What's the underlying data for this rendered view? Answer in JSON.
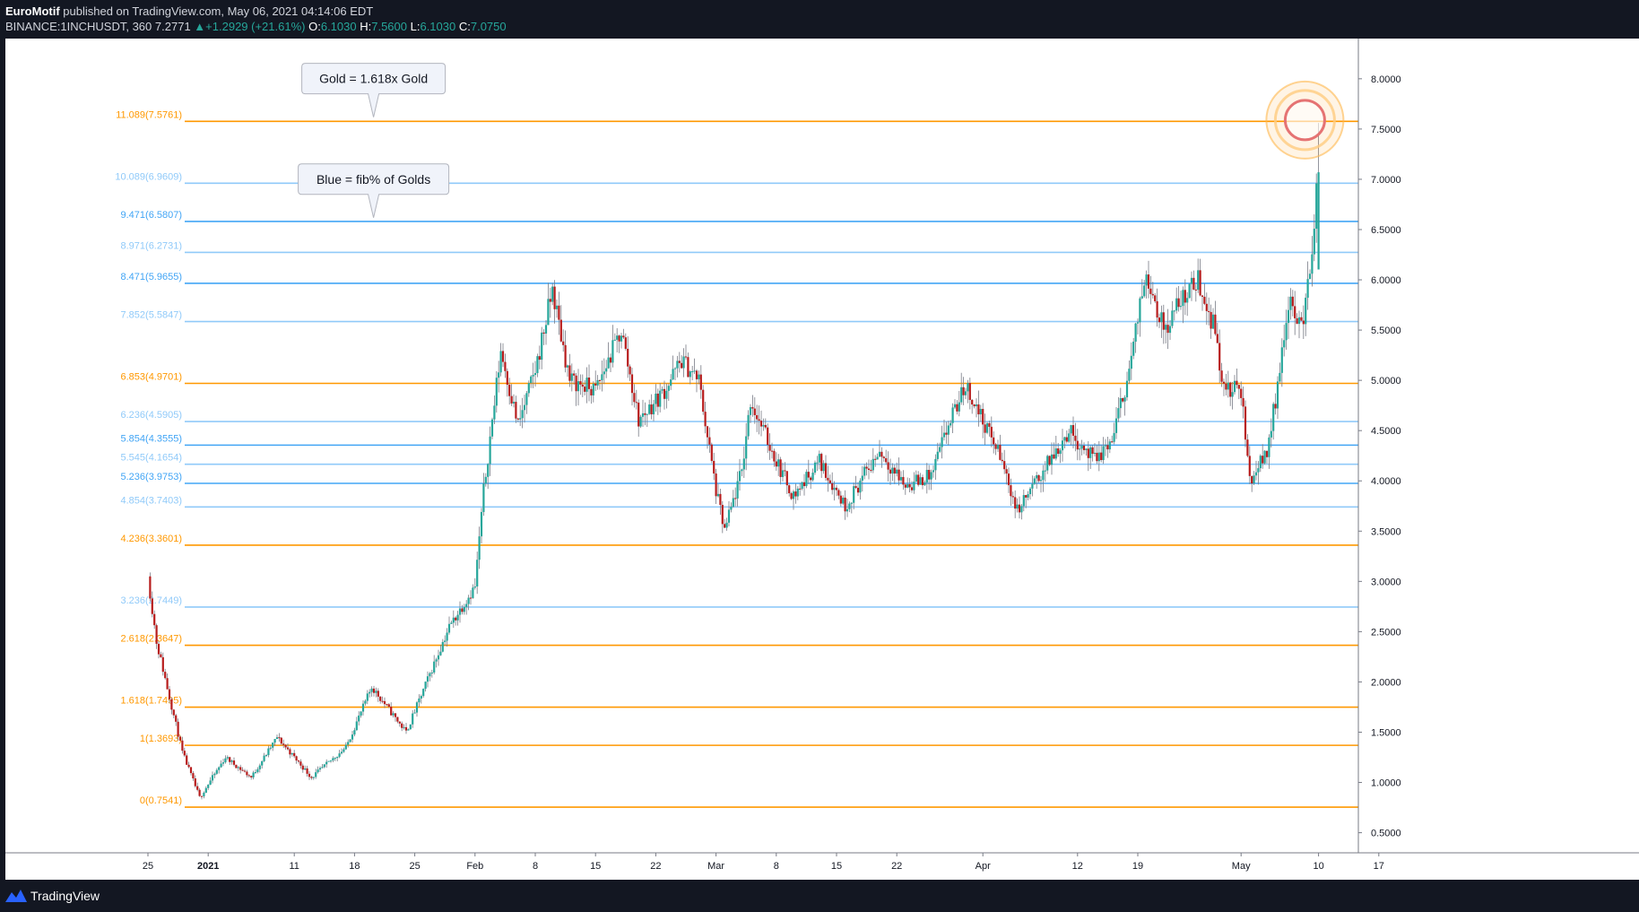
{
  "header": {
    "author": "EuroMotif",
    "published": "published on TradingView.com, May 06, 2021 04:14:06 EDT",
    "symbol": "BINANCE:1INCHUSDT, 360",
    "last": "7.2771",
    "change": "+1.2929 (+21.61%)",
    "ohlc": [
      {
        "label": "O:",
        "value": "6.1030"
      },
      {
        "label": "H:",
        "value": "7.5600"
      },
      {
        "label": "L:",
        "value": "6.1030"
      },
      {
        "label": "C:",
        "value": "7.0750"
      }
    ]
  },
  "footer": {
    "brand": "TradingView"
  },
  "colors": {
    "gold": "#ff9800",
    "blue_light": "#90caf9",
    "blue_dark": "#42a5f5",
    "up": "#26a69a",
    "down": "#b71c1c",
    "bg": "#131722"
  },
  "chart_data": {
    "type": "candlestick",
    "ylim": [
      0.3,
      8.4
    ],
    "y_ticks": [
      "0.5000",
      "1.0000",
      "1.5000",
      "2.0000",
      "2.5000",
      "3.0000",
      "3.5000",
      "4.0000",
      "4.5000",
      "5.0000",
      "5.5000",
      "6.0000",
      "6.5000",
      "7.0000",
      "7.5000",
      "8.0000"
    ],
    "x_ticks": [
      {
        "label": "25",
        "day": 0
      },
      {
        "label": "2021",
        "day": 7
      },
      {
        "label": "11",
        "day": 17
      },
      {
        "label": "18",
        "day": 24
      },
      {
        "label": "25",
        "day": 31
      },
      {
        "label": "Feb",
        "day": 38
      },
      {
        "label": "8",
        "day": 45
      },
      {
        "label": "15",
        "day": 52
      },
      {
        "label": "22",
        "day": 59
      },
      {
        "label": "Mar",
        "day": 66
      },
      {
        "label": "8",
        "day": 73
      },
      {
        "label": "15",
        "day": 80
      },
      {
        "label": "22",
        "day": 87
      },
      {
        "label": "Apr",
        "day": 97
      },
      {
        "label": "12",
        "day": 108
      },
      {
        "label": "19",
        "day": 115
      },
      {
        "label": "May",
        "day": 127
      },
      {
        "label": "10",
        "day": 136
      },
      {
        "label": "17",
        "day": 143
      }
    ],
    "fib_levels": [
      {
        "label": "11.089(7.5761)",
        "price": 7.5761,
        "kind": "gold"
      },
      {
        "label": "10.089(6.9609)",
        "price": 6.9609,
        "kind": "blue_light"
      },
      {
        "label": "9.471(6.5807)",
        "price": 6.5807,
        "kind": "blue_dark"
      },
      {
        "label": "8.971(6.2731)",
        "price": 6.2731,
        "kind": "blue_light"
      },
      {
        "label": "8.471(5.9655)",
        "price": 5.9655,
        "kind": "blue_dark"
      },
      {
        "label": "7.852(5.5847)",
        "price": 5.5847,
        "kind": "blue_light"
      },
      {
        "label": "6.853(4.9701)",
        "price": 4.9701,
        "kind": "gold"
      },
      {
        "label": "6.236(4.5905)",
        "price": 4.5905,
        "kind": "blue_light"
      },
      {
        "label": "5.854(4.3555)",
        "price": 4.3555,
        "kind": "blue_dark"
      },
      {
        "label": "5.545(4.1654)",
        "price": 4.1654,
        "kind": "blue_light"
      },
      {
        "label": "5.236(3.9753)",
        "price": 3.9753,
        "kind": "blue_dark"
      },
      {
        "label": "4.854(3.7403)",
        "price": 3.7403,
        "kind": "blue_light"
      },
      {
        "label": "4.236(3.3601)",
        "price": 3.3601,
        "kind": "gold"
      },
      {
        "label": "3.236(2.7449)",
        "price": 2.7449,
        "kind": "blue_light"
      },
      {
        "label": "2.618(2.3647)",
        "price": 2.3647,
        "kind": "gold"
      },
      {
        "label": "1.618(1.7495)",
        "price": 1.7495,
        "kind": "gold"
      },
      {
        "label": "1(1.3693)",
        "price": 1.3693,
        "kind": "gold"
      },
      {
        "label": "0(0.7541)",
        "price": 0.7541,
        "kind": "gold"
      }
    ],
    "annotations": [
      {
        "text": "Gold = 1.618x Gold",
        "day": 26,
        "price": 7.6
      },
      {
        "text": "Blue = fib% of Golds",
        "day": 26,
        "price": 6.6
      }
    ],
    "highlight": {
      "day": 134,
      "price": 7.5
    },
    "anchors": [
      {
        "day": 0,
        "price": 1.6
      },
      {
        "day": 0,
        "price": 3.05
      },
      {
        "day": 1,
        "price": 2.4
      },
      {
        "day": 4,
        "price": 1.3
      },
      {
        "day": 6,
        "price": 0.85
      },
      {
        "day": 9,
        "price": 1.25
      },
      {
        "day": 12,
        "price": 1.05
      },
      {
        "day": 15,
        "price": 1.45
      },
      {
        "day": 19,
        "price": 1.05
      },
      {
        "day": 23,
        "price": 1.35
      },
      {
        "day": 26,
        "price": 1.95
      },
      {
        "day": 30,
        "price": 1.5
      },
      {
        "day": 35,
        "price": 2.55
      },
      {
        "day": 38,
        "price": 2.95
      },
      {
        "day": 39,
        "price": 3.9
      },
      {
        "day": 41,
        "price": 5.3
      },
      {
        "day": 43,
        "price": 4.55
      },
      {
        "day": 45,
        "price": 5.1
      },
      {
        "day": 47,
        "price": 5.9
      },
      {
        "day": 49,
        "price": 5.0
      },
      {
        "day": 52,
        "price": 4.9
      },
      {
        "day": 55,
        "price": 5.5
      },
      {
        "day": 57,
        "price": 4.6
      },
      {
        "day": 60,
        "price": 4.9
      },
      {
        "day": 62,
        "price": 5.2
      },
      {
        "day": 64,
        "price": 5.0
      },
      {
        "day": 66,
        "price": 3.9
      },
      {
        "day": 67,
        "price": 3.5
      },
      {
        "day": 69,
        "price": 4.1
      },
      {
        "day": 70,
        "price": 4.8
      },
      {
        "day": 73,
        "price": 4.2
      },
      {
        "day": 75,
        "price": 3.85
      },
      {
        "day": 78,
        "price": 4.2
      },
      {
        "day": 81,
        "price": 3.75
      },
      {
        "day": 85,
        "price": 4.3
      },
      {
        "day": 88,
        "price": 3.95
      },
      {
        "day": 91,
        "price": 4.05
      },
      {
        "day": 93,
        "price": 4.55
      },
      {
        "day": 95,
        "price": 4.95
      },
      {
        "day": 97,
        "price": 4.6
      },
      {
        "day": 99,
        "price": 4.25
      },
      {
        "day": 101,
        "price": 3.7
      },
      {
        "day": 104,
        "price": 4.1
      },
      {
        "day": 107,
        "price": 4.5
      },
      {
        "day": 110,
        "price": 4.2
      },
      {
        "day": 112,
        "price": 4.4
      },
      {
        "day": 114,
        "price": 5.1
      },
      {
        "day": 116,
        "price": 6.1
      },
      {
        "day": 118,
        "price": 5.5
      },
      {
        "day": 120,
        "price": 5.8
      },
      {
        "day": 122,
        "price": 6.0
      },
      {
        "day": 124,
        "price": 5.5
      },
      {
        "day": 125,
        "price": 4.9
      },
      {
        "day": 127,
        "price": 4.9
      },
      {
        "day": 128,
        "price": 4.0
      },
      {
        "day": 130,
        "price": 4.3
      },
      {
        "day": 131,
        "price": 4.8
      },
      {
        "day": 132,
        "price": 5.5
      },
      {
        "day": 133,
        "price": 5.8
      },
      {
        "day": 134,
        "price": 5.5
      },
      {
        "day": 135,
        "price": 6.1
      },
      {
        "day": 136,
        "price": 7.07
      }
    ]
  }
}
